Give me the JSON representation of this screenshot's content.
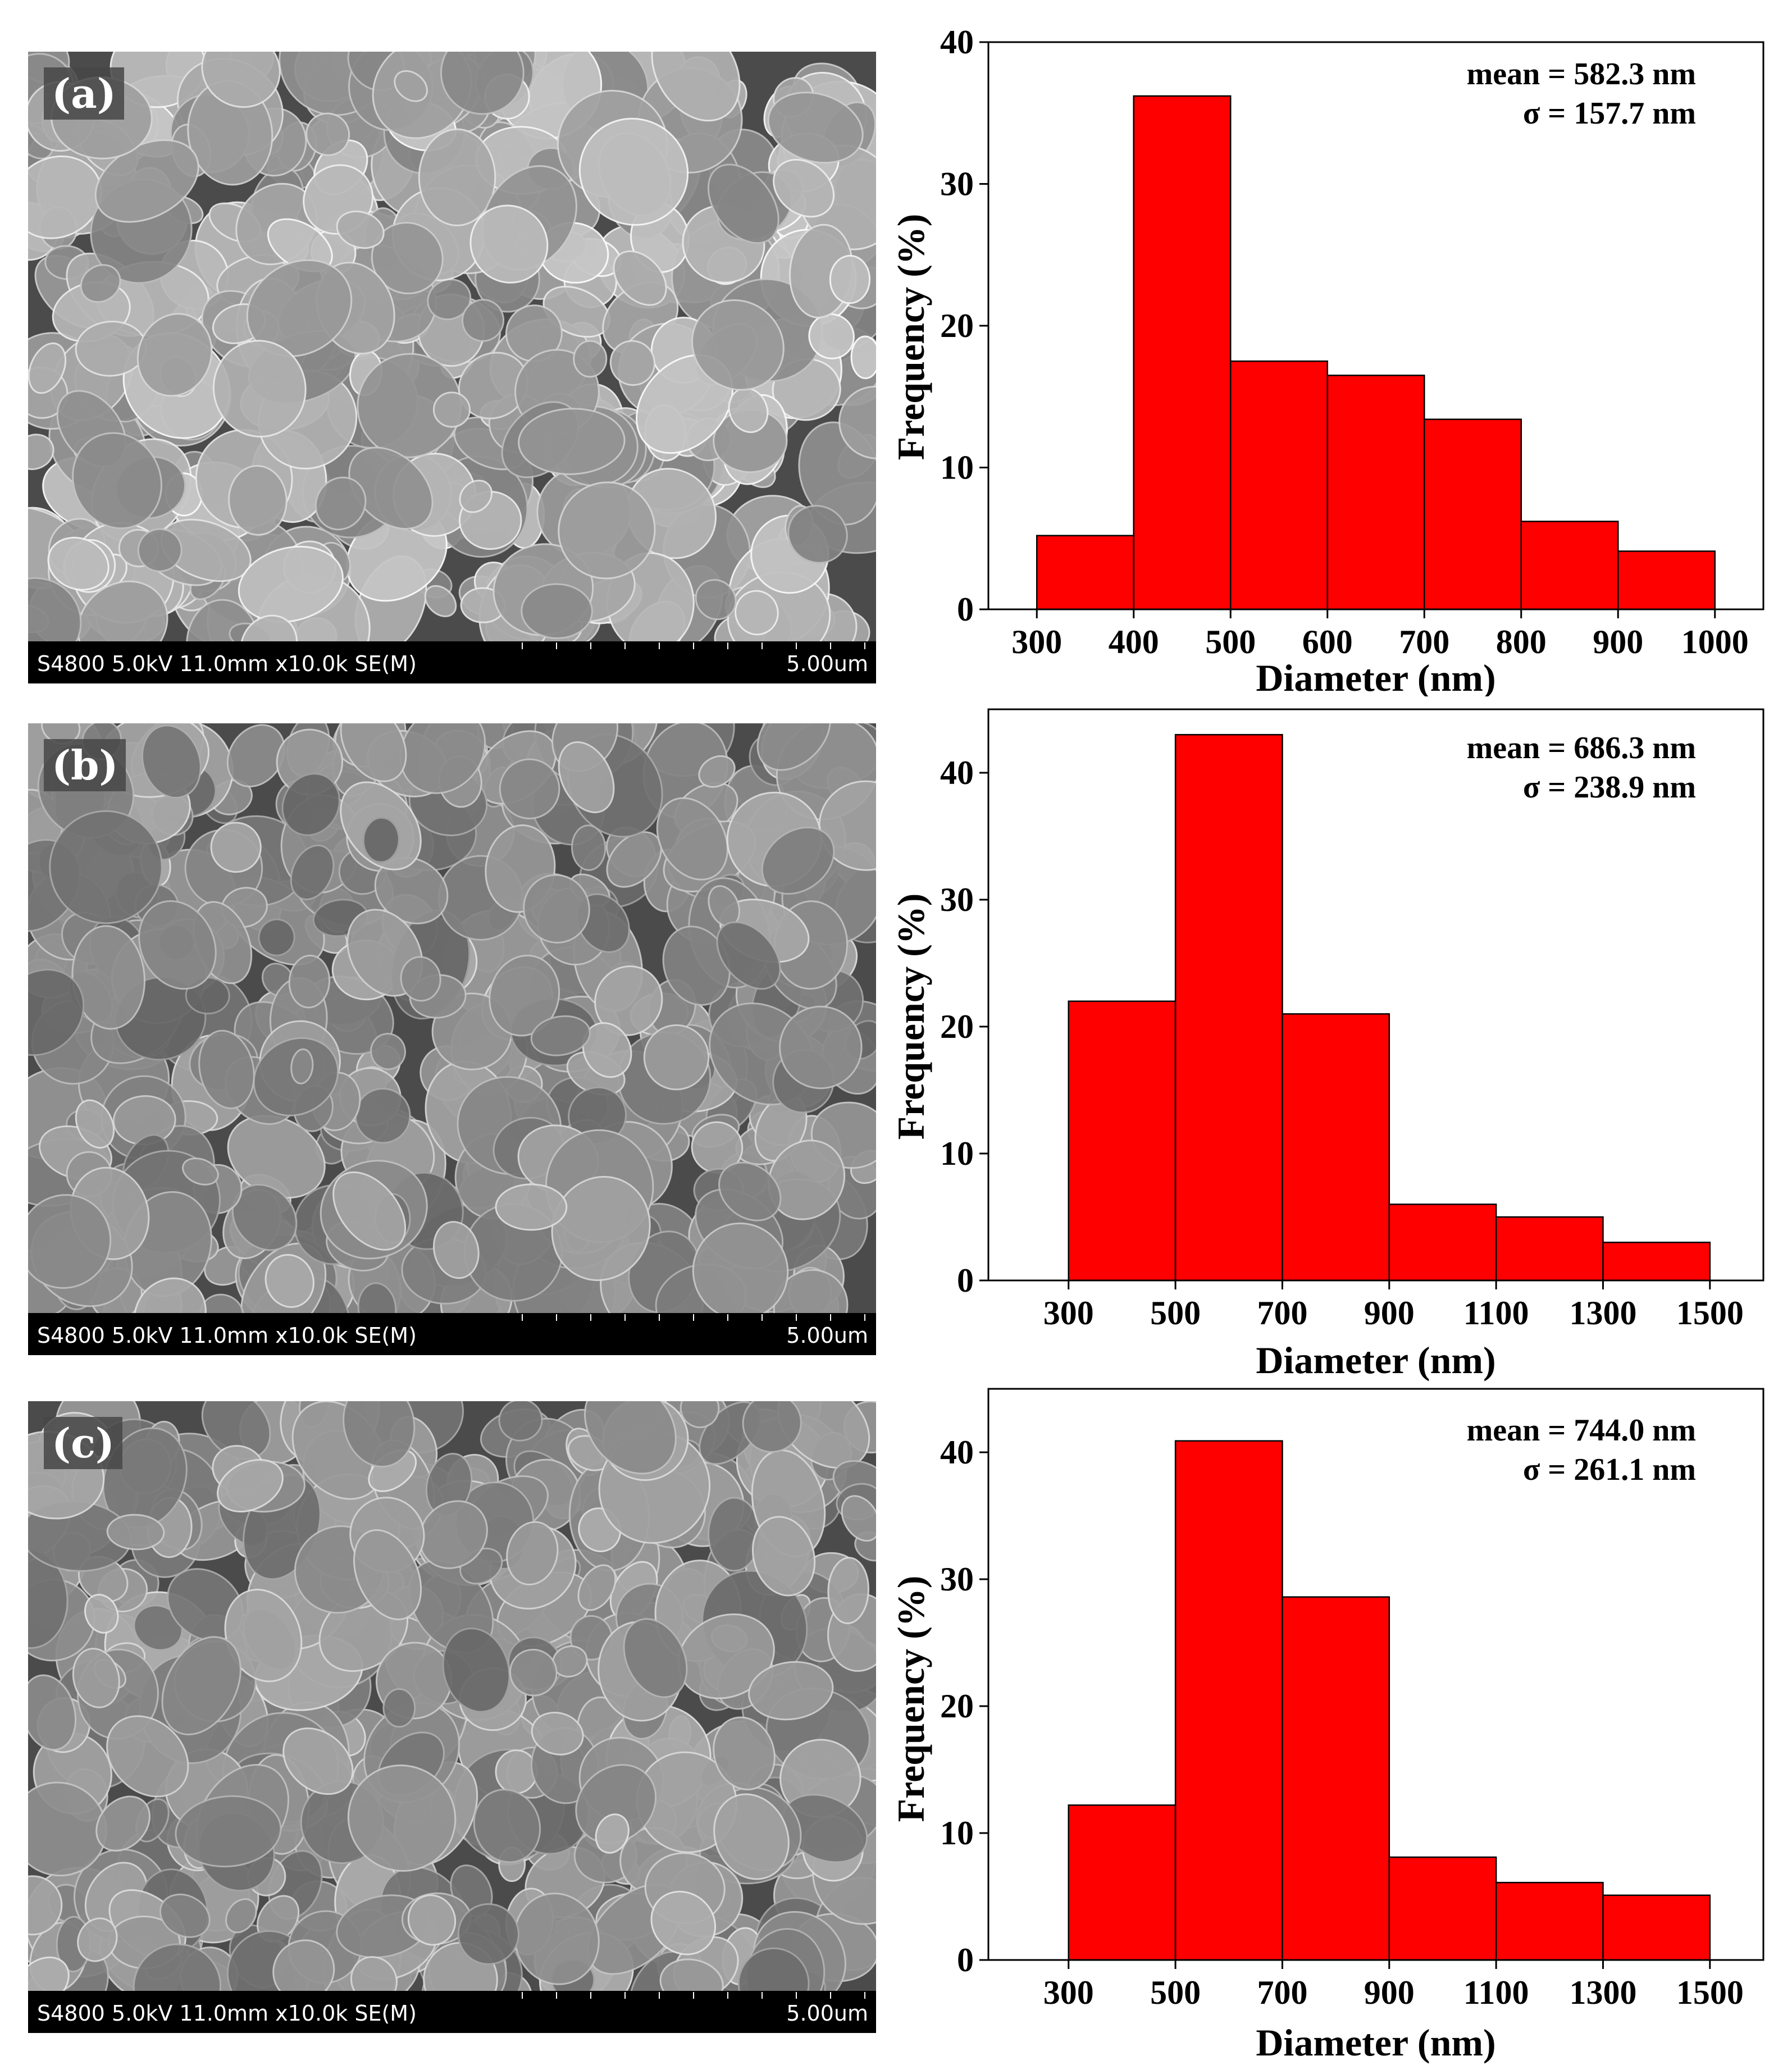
{
  "panels": [
    {
      "label": "(a)",
      "sem_info": "S4800 5.0kV 11.0mm x10.0k SE(M)",
      "scale_bar": "5.00um",
      "stats": {
        "mean": "mean = 582.3 nm",
        "sigma": "σ = 157.7 nm"
      }
    },
    {
      "label": "(b)",
      "sem_info": "S4800 5.0kV 11.0mm x10.0k SE(M)",
      "scale_bar": "5.00um",
      "stats": {
        "mean": "mean = 686.3 nm",
        "sigma": "σ = 238.9 nm"
      }
    },
    {
      "label": "(c)",
      "sem_info": "S4800 5.0kV 11.0mm x10.0k SE(M)",
      "scale_bar": "5.00um",
      "stats": {
        "mean": "mean = 744.0 nm",
        "sigma": "σ = 261.1 nm"
      }
    }
  ],
  "chart_data": [
    {
      "type": "bar",
      "xlabel": "Diameter (nm)",
      "ylabel": "Frequency (%)",
      "xlim": [
        250,
        1050
      ],
      "ylim": [
        0,
        40
      ],
      "xticks": [
        300,
        400,
        500,
        600,
        700,
        800,
        900,
        1000
      ],
      "yticks": [
        0,
        10,
        20,
        30,
        40
      ],
      "bins": [
        [
          300,
          400
        ],
        [
          400,
          500
        ],
        [
          500,
          600
        ],
        [
          600,
          700
        ],
        [
          700,
          800
        ],
        [
          800,
          900
        ],
        [
          900,
          1000
        ]
      ],
      "values": [
        5.2,
        36.2,
        17.5,
        16.5,
        13.4,
        6.2,
        4.1
      ],
      "bar_color": "#ff0000"
    },
    {
      "type": "bar",
      "xlabel": "Diameter (nm)",
      "ylabel": "Frequency (%)",
      "xlim": [
        150,
        1600
      ],
      "ylim": [
        0,
        45
      ],
      "xticks": [
        300,
        500,
        700,
        900,
        1100,
        1300,
        1500
      ],
      "yticks": [
        0,
        10,
        20,
        30,
        40
      ],
      "bins": [
        [
          300,
          500
        ],
        [
          500,
          700
        ],
        [
          700,
          900
        ],
        [
          900,
          1100
        ],
        [
          1100,
          1300
        ],
        [
          1300,
          1500
        ]
      ],
      "values": [
        22,
        43,
        21,
        6,
        5,
        3
      ],
      "bar_color": "#ff0000"
    },
    {
      "type": "bar",
      "xlabel": "Diameter (nm)",
      "ylabel": "Frequency (%)",
      "xlim": [
        150,
        1600
      ],
      "ylim": [
        0,
        45
      ],
      "xticks": [
        300,
        500,
        700,
        900,
        1100,
        1300,
        1500
      ],
      "yticks": [
        0,
        10,
        20,
        30,
        40
      ],
      "bins": [
        [
          300,
          500
        ],
        [
          500,
          700
        ],
        [
          700,
          900
        ],
        [
          900,
          1100
        ],
        [
          1100,
          1300
        ],
        [
          1300,
          1500
        ]
      ],
      "values": [
        12.2,
        40.9,
        28.6,
        8.1,
        6.1,
        5.1
      ],
      "bar_color": "#ff0000"
    }
  ]
}
